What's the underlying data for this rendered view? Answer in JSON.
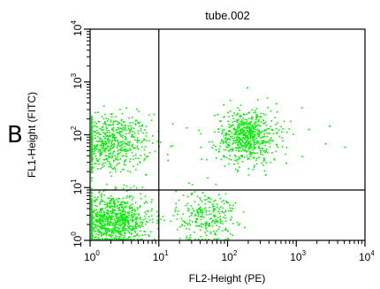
{
  "panel_label": "B",
  "chart_data": {
    "type": "scatter",
    "title": "tube.002",
    "xlabel": "FL2-Height (PE)",
    "ylabel": "FL1-Height (FITC)",
    "x_scale": "log",
    "y_scale": "log",
    "xlim": [
      1,
      10000
    ],
    "ylim": [
      1,
      10000
    ],
    "x_ticks": [
      {
        "base": "10",
        "exp": "0",
        "value": 1
      },
      {
        "base": "10",
        "exp": "1",
        "value": 10
      },
      {
        "base": "10",
        "exp": "2",
        "value": 100
      },
      {
        "base": "10",
        "exp": "3",
        "value": 1000
      },
      {
        "base": "10",
        "exp": "4",
        "value": 10000
      }
    ],
    "y_ticks": [
      {
        "base": "10",
        "exp": "0",
        "value": 1
      },
      {
        "base": "10",
        "exp": "1",
        "value": 10
      },
      {
        "base": "10",
        "exp": "2",
        "value": 100
      },
      {
        "base": "10",
        "exp": "3",
        "value": 1000
      },
      {
        "base": "10",
        "exp": "4",
        "value": 10000
      }
    ],
    "quadrant_gates": {
      "x": 10,
      "y": 9
    },
    "point_color": "#00ee00",
    "clusters": [
      {
        "x_center": 1.7,
        "y_center": 70,
        "x_spread_decades": 0.32,
        "y_spread_decades": 0.28,
        "count": 700
      },
      {
        "x_center": 2.0,
        "y_center": 2.5,
        "x_spread_decades": 0.3,
        "y_spread_decades": 0.25,
        "count": 950
      },
      {
        "x_center": 48,
        "y_center": 3.0,
        "x_spread_decades": 0.22,
        "y_spread_decades": 0.25,
        "count": 260
      },
      {
        "x_center": 190,
        "y_center": 95,
        "x_spread_decades": 0.22,
        "y_spread_decades": 0.25,
        "count": 650
      }
    ],
    "scattered_points": [
      {
        "x": 190,
        "y": 800
      },
      {
        "x": 2600,
        "y": 70
      },
      {
        "x": 1500,
        "y": 130
      },
      {
        "x": 40,
        "y": 60
      },
      {
        "x": 700,
        "y": 30
      },
      {
        "x": 3000,
        "y": 150
      },
      {
        "x": 500,
        "y": 400
      },
      {
        "x": 25,
        "y": 140
      },
      {
        "x": 350,
        "y": 18
      },
      {
        "x": 5000,
        "y": 60
      },
      {
        "x": 1200,
        "y": 40
      },
      {
        "x": 70,
        "y": 250
      }
    ]
  }
}
